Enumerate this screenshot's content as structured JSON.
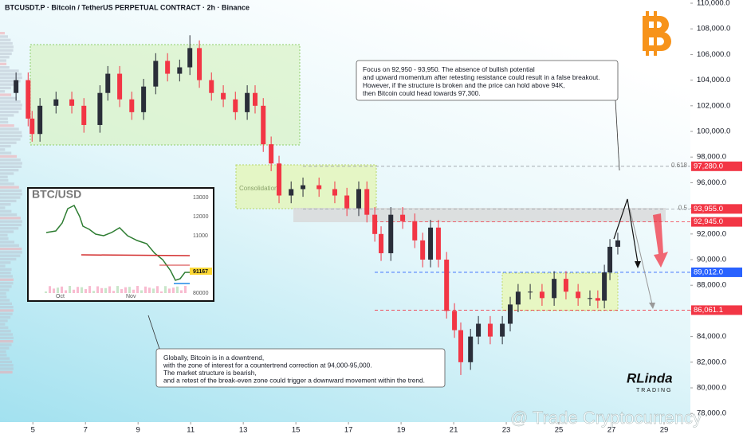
{
  "chart_data": {
    "type": "candlestick",
    "title": "BTCUSDT.P · Bitcoin / TetherUS PERPETUAL CONTRACT · 2h · Binance",
    "up_color": "#2a2e39",
    "down_color": "#f23645",
    "xlim": [
      3.75,
      30
    ],
    "xticks": [
      5,
      7,
      9,
      11,
      13,
      15,
      17,
      19,
      21,
      23,
      25,
      27,
      29
    ],
    "ylim": [
      77330,
      110250
    ],
    "yticks": [
      {
        "value": 78000,
        "label": "78,000.0"
      },
      {
        "value": 80000,
        "label": "80,000.0"
      },
      {
        "value": 82000,
        "label": "82,000.0"
      },
      {
        "value": 84000,
        "label": "84,000.0"
      },
      {
        "value": 86000,
        "label": "86,000.0"
      },
      {
        "value": 88000,
        "label": "88,000.0"
      },
      {
        "value": 90000,
        "label": "90,000.0"
      },
      {
        "value": 92000,
        "label": "92,000.0"
      },
      {
        "value": 94000,
        "label": "94,000.0"
      },
      {
        "value": 96000,
        "label": "96,000.0"
      },
      {
        "value": 98000,
        "label": "98,000.0"
      },
      {
        "value": 100000,
        "label": "100,000.0"
      },
      {
        "value": 102000,
        "label": "102,000.0"
      },
      {
        "value": 104000,
        "label": "104,000.0"
      },
      {
        "value": 106000,
        "label": "106,000.0"
      },
      {
        "value": 108000,
        "label": "108,000.0"
      },
      {
        "value": 110000,
        "label": "110,000.0"
      }
    ],
    "x": [
      4.36,
      4.82,
      4.97,
      5.27,
      5.88,
      6.48,
      6.94,
      7.55,
      7.85,
      8.3,
      8.76,
      9.21,
      9.67,
      10.12,
      10.58,
      10.97,
      11.33,
      11.79,
      12.24,
      12.7,
      13.15,
      13.45,
      13.76,
      14.06,
      14.36,
      14.82,
      15.27,
      15.88,
      16.48,
      16.94,
      17.39,
      17.7,
      18.0,
      18.24,
      18.61,
      19.06,
      19.52,
      19.82,
      20.12,
      20.42,
      20.73,
      21.03,
      21.27,
      21.64,
      21.94,
      22.39,
      22.85,
      23.15,
      23.45,
      23.91,
      24.36,
      24.82,
      25.27,
      25.73,
      26.18,
      26.48,
      26.73,
      26.94,
      27.24
    ],
    "open": [
      103000,
      104000,
      101000,
      99800,
      102000,
      102500,
      102000,
      100500,
      103000,
      104500,
      102500,
      101500,
      103500,
      105500,
      104500,
      105000,
      106500,
      104000,
      103000,
      102500,
      101500,
      103000,
      102000,
      99000,
      97500,
      95000,
      95500,
      95800,
      95500,
      95000,
      94000,
      95500,
      93500,
      92000,
      90500,
      93500,
      93000,
      91500,
      90000,
      92500,
      90000,
      86000,
      84500,
      82000,
      84000,
      85000,
      84000,
      85000,
      86500,
      87500,
      87500,
      87000,
      88500,
      87500,
      87000,
      87000,
      86800,
      89000,
      91000
    ],
    "high": [
      104600,
      104600,
      101600,
      102600,
      103100,
      103100,
      102600,
      103600,
      105100,
      105100,
      103100,
      104100,
      106100,
      106100,
      105600,
      107500,
      107100,
      104600,
      103600,
      103100,
      103600,
      103600,
      102600,
      99600,
      98100,
      96100,
      96400,
      96400,
      96100,
      95600,
      96100,
      96100,
      94100,
      92600,
      94100,
      94100,
      93600,
      92100,
      93100,
      93100,
      90600,
      86600,
      85100,
      84600,
      85600,
      85600,
      85600,
      87100,
      88100,
      88100,
      88100,
      89100,
      89100,
      88100,
      87600,
      87600,
      89600,
      91600,
      92100
    ],
    "low": [
      102400,
      100400,
      99200,
      99200,
      101400,
      101400,
      99900,
      99900,
      102400,
      101900,
      100900,
      100900,
      102900,
      103900,
      103900,
      104400,
      103400,
      102400,
      101900,
      100900,
      100900,
      101400,
      98400,
      96900,
      94400,
      94400,
      94900,
      94900,
      94400,
      93400,
      93400,
      92900,
      91400,
      89900,
      89900,
      92400,
      90900,
      89400,
      89400,
      89400,
      85400,
      83900,
      81000,
      81400,
      83400,
      83400,
      83400,
      84400,
      85900,
      86900,
      86400,
      86400,
      86900,
      86400,
      86400,
      86200,
      86200,
      88400,
      90400
    ],
    "close": [
      104000,
      101000,
      99800,
      102000,
      102500,
      102000,
      100500,
      103000,
      104500,
      102500,
      101500,
      103500,
      105500,
      104500,
      105000,
      106500,
      104000,
      103000,
      102500,
      101500,
      103000,
      102000,
      99000,
      97500,
      95000,
      95500,
      95800,
      95500,
      95000,
      94000,
      95500,
      93500,
      92000,
      90500,
      93500,
      93000,
      91500,
      90000,
      92500,
      90000,
      86000,
      84500,
      82000,
      84000,
      85000,
      84000,
      85000,
      86500,
      87500,
      87500,
      87000,
      88500,
      87500,
      87000,
      87000,
      86800,
      89000,
      91000,
      91500
    ],
    "levels": [
      {
        "value": 97280,
        "label": "97,280.0",
        "color": "#f23645",
        "fib": "0.618"
      },
      {
        "value": 93955,
        "label": "93,955.0",
        "color": "#f23645",
        "fib": "0.5"
      },
      {
        "value": 92945,
        "label": "92,945.0",
        "color": "#f23645"
      },
      {
        "value": 89012,
        "label": "89,012.0",
        "color": "#2962ff"
      },
      {
        "value": 86061.1,
        "label": "86,061.1",
        "color": "#f23645"
      }
    ],
    "zone_label": "Consolidation",
    "annotation_top": [
      "Focus on 92,950 - 93,950. The absence of bullish potential",
      "and upward momentum after retesting resistance could result in a false breakout.",
      "However, if the structure is broken and the price can hold above 94K,",
      "then Bitcoin could head towards 97,300."
    ],
    "annotation_bottom": [
      "Globally, Bitcoin is in a downtrend,",
      "with the zone of interest for a countertrend correction at 94,000-95,000.",
      "The market structure is bearish,",
      "and a retest of the break-even zone could trigger a downward movement within the trend."
    ],
    "inset": {
      "title": "BTC/USD",
      "ticks": [
        "13000",
        "12000",
        "11000",
        "80000"
      ],
      "price_label": "91167",
      "months": [
        "Oct",
        "Nov"
      ]
    },
    "brand": [
      "RLinda",
      "TRADING"
    ],
    "watermark": "@ Trade Cryptocurrency"
  }
}
